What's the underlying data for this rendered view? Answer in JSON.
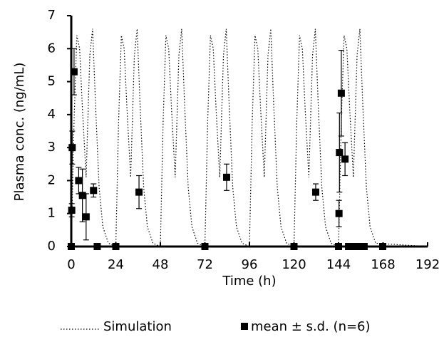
{
  "chart_data": {
    "type": "scatter",
    "xlabel": "Time (h)",
    "ylabel": "Plasma conc. (ng/mL)",
    "xlim": [
      0,
      192
    ],
    "xticks": [
      0,
      24,
      48,
      72,
      96,
      120,
      144,
      168,
      192
    ],
    "ylim": [
      0,
      7
    ],
    "yticks": [
      0,
      1,
      2,
      3,
      4,
      5,
      6,
      7
    ],
    "grid": false,
    "legend": "bottom",
    "series": [
      {
        "name": "Simulation",
        "color": "#000000",
        "line": "dotted",
        "x": [
          0,
          1.5,
          3,
          4.5,
          6,
          8,
          10,
          11.5,
          13,
          15,
          17,
          20,
          24,
          25.5,
          27,
          28.5,
          30,
          32,
          34,
          35.5,
          37,
          39,
          41,
          44,
          48,
          49.5,
          51,
          52.5,
          54,
          56,
          58,
          59.5,
          61,
          63,
          65,
          68,
          72,
          73.5,
          75,
          76.5,
          78,
          80,
          82,
          83.5,
          85,
          87,
          89,
          92,
          96,
          97.5,
          99,
          100.5,
          102,
          104,
          106,
          107.5,
          109,
          111,
          113,
          116,
          120,
          121.5,
          123,
          124.5,
          126,
          128,
          130,
          131.5,
          133,
          135,
          137,
          140,
          144,
          145.5,
          147,
          148.5,
          150,
          152,
          154,
          155.5,
          157,
          159,
          161,
          164,
          192
        ],
        "values": [
          0,
          3.8,
          6.4,
          6.0,
          4.2,
          2.1,
          5.8,
          6.6,
          4.4,
          1.8,
          0.6,
          0.1,
          0,
          3.8,
          6.4,
          6.0,
          4.2,
          2.1,
          5.8,
          6.6,
          4.4,
          1.8,
          0.6,
          0.1,
          0,
          3.8,
          6.4,
          6.0,
          4.2,
          2.1,
          5.8,
          6.6,
          4.4,
          1.8,
          0.6,
          0.1,
          0,
          3.8,
          6.4,
          6.0,
          4.2,
          2.1,
          5.8,
          6.6,
          4.4,
          1.8,
          0.6,
          0.1,
          0,
          3.8,
          6.4,
          6.0,
          4.2,
          2.1,
          5.8,
          6.6,
          4.4,
          1.8,
          0.6,
          0.1,
          0,
          3.8,
          6.4,
          6.0,
          4.2,
          2.1,
          5.8,
          6.6,
          4.4,
          1.8,
          0.6,
          0.1,
          0,
          3.8,
          6.4,
          6.0,
          4.2,
          2.1,
          5.8,
          6.6,
          4.4,
          1.8,
          0.6,
          0.1,
          0
        ]
      },
      {
        "name": "mean ± s.d. (n=6)",
        "color": "#000000",
        "marker": "square",
        "x": [
          0,
          0.25,
          0.5,
          1.5,
          4,
          6,
          8,
          12,
          14,
          24,
          36.5,
          72,
          83.7,
          120,
          131.7,
          144,
          144.25,
          144.5,
          145.5,
          147.5,
          149.4,
          151.7,
          154,
          157.8,
          167.8
        ],
        "values": [
          0,
          1.1,
          3.0,
          5.3,
          2.0,
          1.55,
          0.9,
          1.7,
          0,
          0,
          1.65,
          0,
          2.1,
          0,
          1.65,
          0,
          1.0,
          2.85,
          4.65,
          2.65,
          0,
          0,
          0,
          0,
          0
        ],
        "errors": [
          0,
          0.2,
          0.5,
          0.7,
          0.4,
          0.8,
          0.7,
          0.2,
          0,
          0,
          0.5,
          0,
          0.4,
          0,
          0.25,
          0,
          0.4,
          1.2,
          1.3,
          0.5,
          0,
          0,
          0,
          0,
          0
        ]
      }
    ]
  }
}
